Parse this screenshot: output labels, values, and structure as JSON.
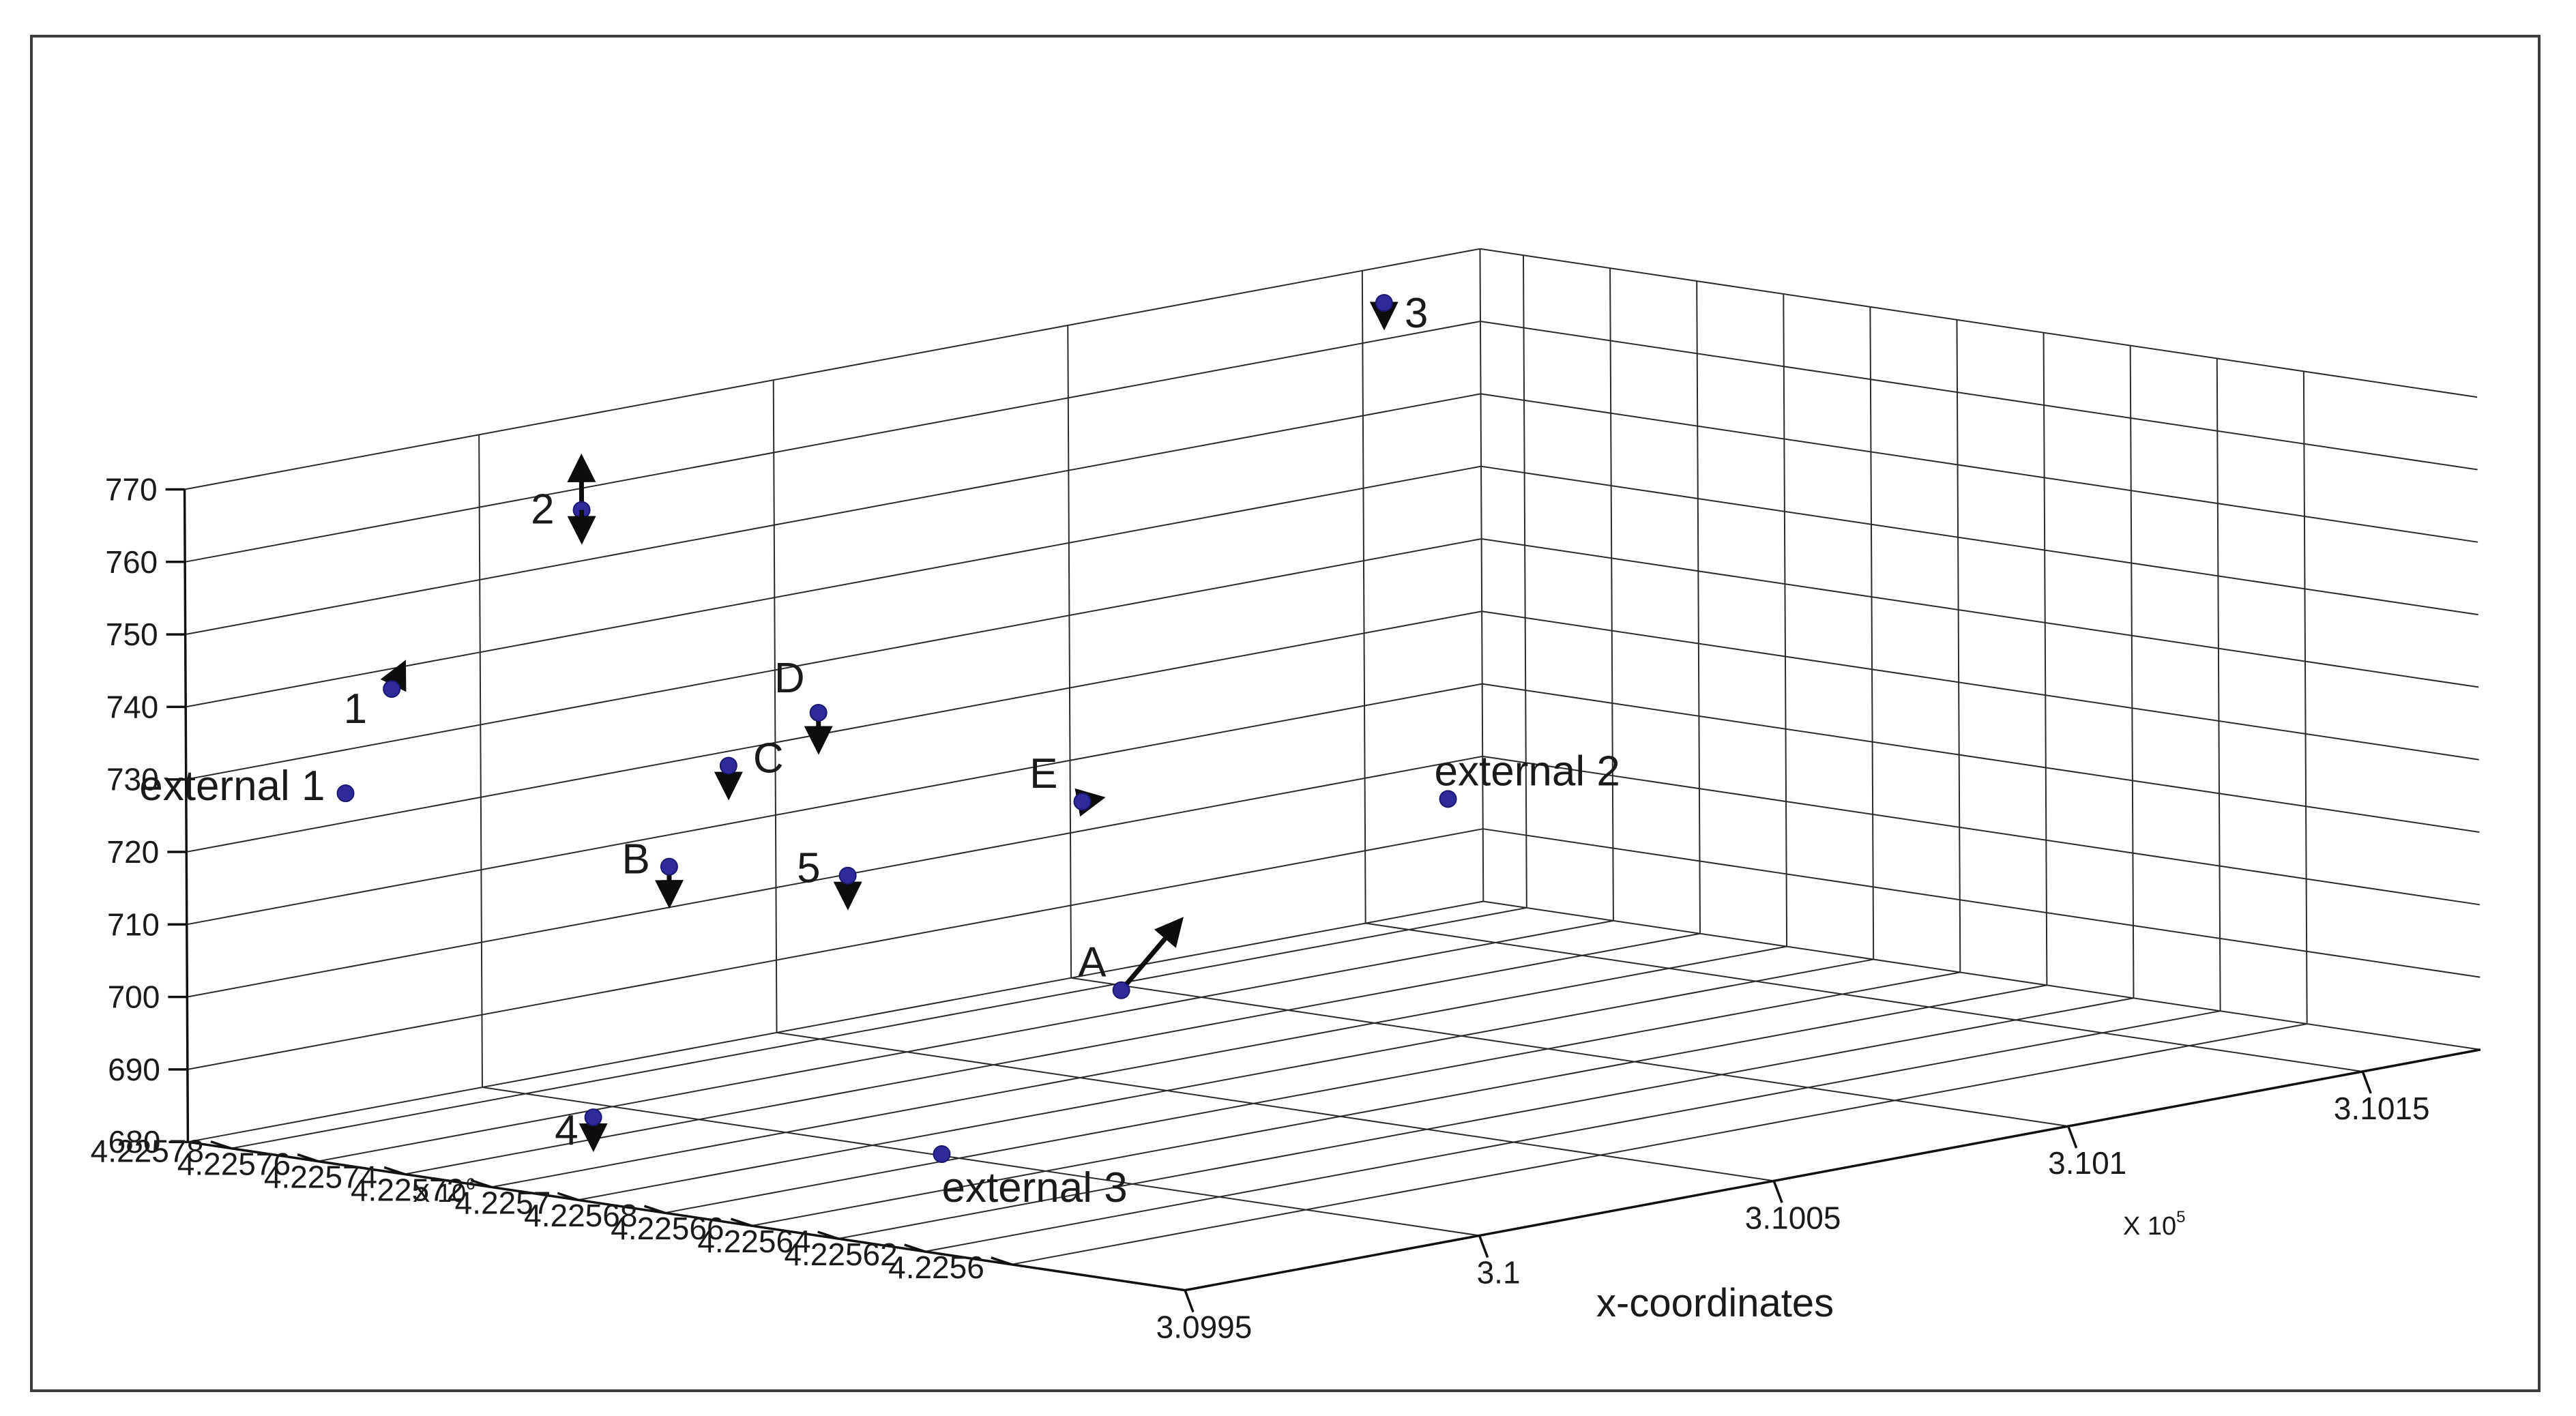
{
  "chart_data": {
    "type": "scatter",
    "projection": "3d",
    "xlabel": "x-coordinates",
    "x_multiplier": "X 10",
    "x_multiplier_exp": "5",
    "y_multiplier": "X 10",
    "y_multiplier_exp": "6",
    "x_ticks": [
      "3.0995",
      "3.1",
      "3.1005",
      "3.101",
      "3.1015"
    ],
    "y_ticks": [
      "4.22578",
      "4.22576",
      "4.22574",
      "4.22572",
      "4.2257",
      "4.22568",
      "4.22566",
      "4.22564",
      "4.22562",
      "4.2256"
    ],
    "z_ticks": [
      "770",
      "760",
      "750",
      "740",
      "730",
      "720",
      "710",
      "700",
      "690",
      "680"
    ],
    "xlim": [
      309950,
      310170
    ],
    "ylim": [
      4225560,
      4225790
    ],
    "zlim": [
      680,
      770
    ],
    "grid": true,
    "points": [
      {
        "label": "external 1",
        "x": 309955,
        "y": 4225760,
        "z": 730,
        "dx": 0,
        "dy": 0,
        "dz": 0
      },
      {
        "label": "1",
        "x": 309971,
        "y": 4225771,
        "z": 741,
        "dx": 2,
        "dy": 0,
        "dz": 3
      },
      {
        "label": "2",
        "x": 310010,
        "y": 4225780,
        "z": 759,
        "dx": 0,
        "dy": 0,
        "dz": 7
      },
      {
        "label": "2",
        "x": 310010,
        "y": 4225780,
        "z": 759,
        "dx": 0,
        "dy": 0,
        "dz": -4
      },
      {
        "label": "B",
        "x": 309990,
        "y": 4225733,
        "z": 717,
        "dx": 0,
        "dy": 0,
        "dz": -5
      },
      {
        "label": "C",
        "x": 310020,
        "y": 4225760,
        "z": 724,
        "dx": 0,
        "dy": 0,
        "dz": -4
      },
      {
        "label": "D",
        "x": 310050,
        "y": 4225780,
        "z": 725,
        "dx": 0,
        "dy": 0,
        "dz": -5
      },
      {
        "label": "5",
        "x": 310010,
        "y": 4225719,
        "z": 714,
        "dx": 0,
        "dy": 0,
        "dz": -4
      },
      {
        "label": "A",
        "x": 310035,
        "y": 4225690,
        "z": 697,
        "dx": 10,
        "dy": 0,
        "dz": 8
      },
      {
        "label": "4",
        "x": 309960,
        "y": 4225710,
        "z": 689,
        "dx": 0,
        "dy": 0,
        "dz": -4
      },
      {
        "label": "external 3",
        "x": 309975,
        "y": 4225650,
        "z": 687,
        "dx": 0,
        "dy": 0,
        "dz": 0
      },
      {
        "label": "E",
        "x": 310080,
        "y": 4225760,
        "z": 710,
        "dx": 3,
        "dy": 0,
        "dz": 0
      },
      {
        "label": "external 2",
        "x": 310120,
        "y": 4225730,
        "z": 707,
        "dx": 0,
        "dy": 0,
        "dz": 0
      },
      {
        "label": "3",
        "x": 310150,
        "y": 4225785,
        "z": 766,
        "dx": 0,
        "dy": 0,
        "dz": -3
      }
    ]
  }
}
